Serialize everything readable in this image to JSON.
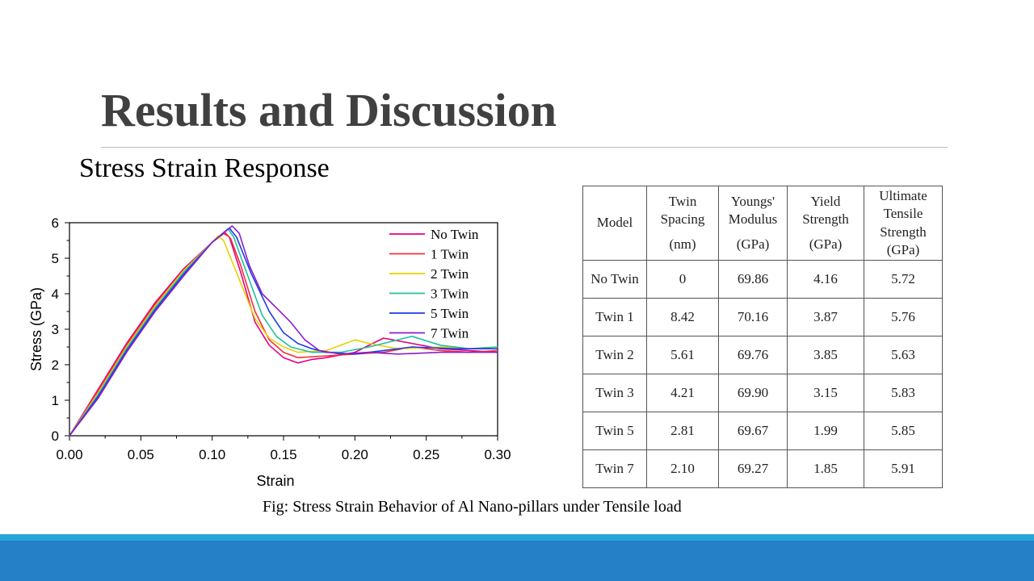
{
  "slide": {
    "title": "Results and Discussion",
    "subtitle": "Stress Strain Response",
    "caption": "Fig: Stress Strain Behavior of Al Nano-pillars under Tensile load"
  },
  "colors": {
    "title_text": "#404040",
    "footer_light": "#25a8d9",
    "footer_dark": "#2580c8"
  },
  "chart_data": {
    "type": "line",
    "xlabel": "Strain",
    "ylabel": "Stress (GPa)",
    "xlim": [
      0,
      0.3
    ],
    "ylim": [
      0,
      6
    ],
    "x_ticks": [
      "0.00",
      "0.05",
      "0.10",
      "0.15",
      "0.20",
      "0.25",
      "0.30"
    ],
    "y_ticks": [
      "0",
      "1",
      "2",
      "3",
      "4",
      "5",
      "6"
    ],
    "grid": false,
    "legend_position": "top-right",
    "series": [
      {
        "name": "No Twin",
        "color": "#e6007e",
        "points": [
          [
            0,
            0
          ],
          [
            0.02,
            1.3
          ],
          [
            0.04,
            2.6
          ],
          [
            0.06,
            3.75
          ],
          [
            0.08,
            4.7
          ],
          [
            0.1,
            5.45
          ],
          [
            0.108,
            5.7
          ],
          [
            0.112,
            5.6
          ],
          [
            0.12,
            4.6
          ],
          [
            0.13,
            3.2
          ],
          [
            0.14,
            2.55
          ],
          [
            0.15,
            2.2
          ],
          [
            0.16,
            2.05
          ],
          [
            0.17,
            2.15
          ],
          [
            0.18,
            2.2
          ],
          [
            0.2,
            2.35
          ],
          [
            0.22,
            2.75
          ],
          [
            0.24,
            2.6
          ],
          [
            0.26,
            2.45
          ],
          [
            0.28,
            2.4
          ],
          [
            0.3,
            2.35
          ]
        ]
      },
      {
        "name": "1 Twin",
        "color": "#f0303c",
        "points": [
          [
            0,
            0
          ],
          [
            0.02,
            1.25
          ],
          [
            0.04,
            2.55
          ],
          [
            0.06,
            3.7
          ],
          [
            0.08,
            4.65
          ],
          [
            0.1,
            5.45
          ],
          [
            0.109,
            5.72
          ],
          [
            0.113,
            5.55
          ],
          [
            0.12,
            4.8
          ],
          [
            0.13,
            3.5
          ],
          [
            0.14,
            2.7
          ],
          [
            0.15,
            2.35
          ],
          [
            0.16,
            2.2
          ],
          [
            0.18,
            2.25
          ],
          [
            0.2,
            2.3
          ],
          [
            0.22,
            2.35
          ],
          [
            0.24,
            2.5
          ],
          [
            0.26,
            2.4
          ],
          [
            0.28,
            2.35
          ],
          [
            0.3,
            2.4
          ]
        ]
      },
      {
        "name": "2 Twin",
        "color": "#e8d000",
        "points": [
          [
            0,
            0
          ],
          [
            0.02,
            1.2
          ],
          [
            0.04,
            2.5
          ],
          [
            0.06,
            3.65
          ],
          [
            0.08,
            4.65
          ],
          [
            0.1,
            5.45
          ],
          [
            0.104,
            5.62
          ],
          [
            0.108,
            5.5
          ],
          [
            0.118,
            4.5
          ],
          [
            0.13,
            3.3
          ],
          [
            0.14,
            2.75
          ],
          [
            0.15,
            2.5
          ],
          [
            0.16,
            2.35
          ],
          [
            0.18,
            2.4
          ],
          [
            0.2,
            2.7
          ],
          [
            0.21,
            2.6
          ],
          [
            0.23,
            2.45
          ],
          [
            0.26,
            2.5
          ],
          [
            0.28,
            2.45
          ],
          [
            0.3,
            2.5
          ]
        ]
      },
      {
        "name": "3 Twin",
        "color": "#20c0a0",
        "points": [
          [
            0,
            0
          ],
          [
            0.02,
            1.15
          ],
          [
            0.04,
            2.45
          ],
          [
            0.06,
            3.6
          ],
          [
            0.08,
            4.6
          ],
          [
            0.1,
            5.45
          ],
          [
            0.111,
            5.83
          ],
          [
            0.115,
            5.6
          ],
          [
            0.125,
            4.5
          ],
          [
            0.135,
            3.4
          ],
          [
            0.145,
            2.8
          ],
          [
            0.155,
            2.5
          ],
          [
            0.17,
            2.35
          ],
          [
            0.19,
            2.35
          ],
          [
            0.21,
            2.5
          ],
          [
            0.24,
            2.8
          ],
          [
            0.26,
            2.55
          ],
          [
            0.28,
            2.45
          ],
          [
            0.3,
            2.5
          ]
        ]
      },
      {
        "name": "5 Twin",
        "color": "#1e3ce6",
        "points": [
          [
            0,
            0
          ],
          [
            0.02,
            1.1
          ],
          [
            0.04,
            2.4
          ],
          [
            0.06,
            3.55
          ],
          [
            0.08,
            4.55
          ],
          [
            0.1,
            5.45
          ],
          [
            0.112,
            5.85
          ],
          [
            0.117,
            5.6
          ],
          [
            0.127,
            4.6
          ],
          [
            0.14,
            3.5
          ],
          [
            0.15,
            2.9
          ],
          [
            0.16,
            2.6
          ],
          [
            0.17,
            2.45
          ],
          [
            0.18,
            2.35
          ],
          [
            0.2,
            2.3
          ],
          [
            0.22,
            2.4
          ],
          [
            0.24,
            2.5
          ],
          [
            0.27,
            2.45
          ],
          [
            0.3,
            2.45
          ]
        ]
      },
      {
        "name": "7 Twin",
        "color": "#8c1ec8",
        "points": [
          [
            0,
            0
          ],
          [
            0.02,
            1.05
          ],
          [
            0.04,
            2.35
          ],
          [
            0.06,
            3.5
          ],
          [
            0.08,
            4.5
          ],
          [
            0.1,
            5.45
          ],
          [
            0.114,
            5.91
          ],
          [
            0.119,
            5.7
          ],
          [
            0.126,
            4.8
          ],
          [
            0.135,
            4.0
          ],
          [
            0.145,
            3.6
          ],
          [
            0.155,
            3.2
          ],
          [
            0.165,
            2.7
          ],
          [
            0.175,
            2.4
          ],
          [
            0.19,
            2.3
          ],
          [
            0.21,
            2.35
          ],
          [
            0.23,
            2.3
          ],
          [
            0.26,
            2.35
          ],
          [
            0.3,
            2.35
          ]
        ]
      }
    ]
  },
  "table": {
    "headers": [
      {
        "top": "Model",
        "unit": ""
      },
      {
        "top": "Twin Spacing",
        "unit": "(nm)"
      },
      {
        "top": "Youngs' Modulus",
        "unit": "(GPa)"
      },
      {
        "top": "Yield Strength",
        "unit": "(GPa)"
      },
      {
        "top": "Ultimate Tensile Strength",
        "unit": "(GPa)"
      }
    ],
    "rows": [
      [
        "No Twin",
        "0",
        "69.86",
        "4.16",
        "5.72"
      ],
      [
        "Twin 1",
        "8.42",
        "70.16",
        "3.87",
        "5.76"
      ],
      [
        "Twin 2",
        "5.61",
        "69.76",
        "3.85",
        "5.63"
      ],
      [
        "Twin 3",
        "4.21",
        "69.90",
        "3.15",
        "5.83"
      ],
      [
        "Twin 5",
        "2.81",
        "69.67",
        "1.99",
        "5.85"
      ],
      [
        "Twin 7",
        "2.10",
        "69.27",
        "1.85",
        "5.91"
      ]
    ]
  }
}
